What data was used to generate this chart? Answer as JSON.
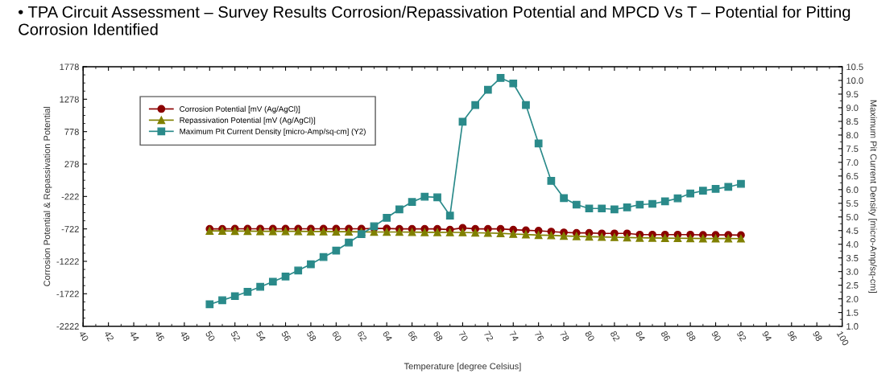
{
  "chart_data": {
    "type": "line",
    "title": "• TPA Circuit Assessment – Survey Results Corrosion/Repassivation Potential and MPCD Vs T – Potential for Pitting Corrosion Identified",
    "xlabel": "Temperature [degree Celsius]",
    "ylabel": "Corrosion Potential & Repassivation Potential",
    "y2label": "Maximum Pit Current Density [micro-Amp/sq-cm]",
    "x": [
      50,
      51,
      52,
      53,
      54,
      55,
      56,
      57,
      58,
      59,
      60,
      61,
      62,
      63,
      64,
      65,
      66,
      67,
      68,
      69,
      70,
      71,
      72,
      73,
      74,
      75,
      76,
      77,
      78,
      79,
      80,
      81,
      82,
      83,
      84,
      85,
      86,
      87,
      88,
      89,
      90,
      91,
      92
    ],
    "series": [
      {
        "name": "Corrosion Potential [mV (Ag/AgCl)]",
        "color": "#8b0000",
        "marker": "circle",
        "values": [
          -722,
          -722,
          -720,
          -720,
          -720,
          -720,
          -720,
          -720,
          -720,
          -720,
          -720,
          -720,
          -720,
          -715,
          -715,
          -722,
          -722,
          -722,
          -722,
          -735,
          -706,
          -722,
          -722,
          -722,
          -735,
          -743,
          -751,
          -764,
          -776,
          -784,
          -784,
          -792,
          -792,
          -792,
          -810,
          -810,
          -810,
          -810,
          -810,
          -815,
          -815,
          -815,
          -818
        ]
      },
      {
        "name": "Repassivation Potential [mV (Ag/AgCl)]",
        "color": "#808000",
        "marker": "triangle",
        "values": [
          -752,
          -752,
          -755,
          -755,
          -758,
          -758,
          -760,
          -760,
          -762,
          -762,
          -765,
          -765,
          -768,
          -770,
          -770,
          -770,
          -772,
          -775,
          -775,
          -776,
          -776,
          -782,
          -785,
          -790,
          -801,
          -808,
          -817,
          -822,
          -830,
          -836,
          -842,
          -846,
          -850,
          -855,
          -860,
          -862,
          -864,
          -866,
          -868,
          -870,
          -870,
          -871,
          -872
        ]
      },
      {
        "name": "Maximum Pit Current Density [micro-Amp/sq-cm] (Y2)",
        "color": "#2a8a8a",
        "marker": "square",
        "axis": "y2",
        "values": [
          1.8,
          1.95,
          2.1,
          2.26,
          2.44,
          2.63,
          2.82,
          3.04,
          3.27,
          3.53,
          3.77,
          4.06,
          4.37,
          4.66,
          4.97,
          5.28,
          5.55,
          5.74,
          5.72,
          5.05,
          8.49,
          9.1,
          9.66,
          10.09,
          9.89,
          9.1,
          7.69,
          6.32,
          5.69,
          5.45,
          5.31,
          5.31,
          5.28,
          5.35,
          5.45,
          5.48,
          5.57,
          5.68,
          5.86,
          5.96,
          6.03,
          6.1,
          6.21
        ]
      }
    ],
    "xlim": [
      40,
      100
    ],
    "xticks": [
      40,
      42,
      44,
      46,
      48,
      50,
      52,
      54,
      56,
      58,
      60,
      62,
      64,
      66,
      68,
      70,
      72,
      74,
      76,
      78,
      80,
      82,
      84,
      86,
      88,
      90,
      92,
      94,
      96,
      98,
      100
    ],
    "ylim": [
      -2222,
      1778
    ],
    "yticks": [
      -2222,
      -1722,
      -1222,
      -722,
      -222,
      278,
      778,
      1278,
      1778
    ],
    "y2lim": [
      1.0,
      10.5
    ],
    "y2ticks": [
      {
        "value": 1.0,
        "label": "1.0"
      },
      {
        "value": 1.5,
        "label": "1.5"
      },
      {
        "value": 2.0,
        "label": "2.0"
      },
      {
        "value": 2.5,
        "label": "2.5"
      },
      {
        "value": 3.0,
        "label": "3.0"
      },
      {
        "value": 3.5,
        "label": "3.5"
      },
      {
        "value": 4.0,
        "label": "4.0"
      },
      {
        "value": 4.5,
        "label": "4.5"
      },
      {
        "value": 5.0,
        "label": "5.0"
      },
      {
        "value": 5.5,
        "label": "5.5"
      },
      {
        "value": 6.0,
        "label": "6.0"
      },
      {
        "value": 6.5,
        "label": "6.5"
      },
      {
        "value": 7.0,
        "label": "7.0"
      },
      {
        "value": 7.5,
        "label": "7.5"
      },
      {
        "value": 8.0,
        "label": "8.0"
      },
      {
        "value": 8.5,
        "label": "8.5"
      },
      {
        "value": 9.0,
        "label": "9.0"
      },
      {
        "value": 9.5,
        "label": "9.5"
      },
      {
        "value": 10.0,
        "label": "10.0"
      },
      {
        "value": 10.5,
        "label": "10.5"
      }
    ],
    "grid": false,
    "legend": "top left",
    "line_style": "solid"
  }
}
